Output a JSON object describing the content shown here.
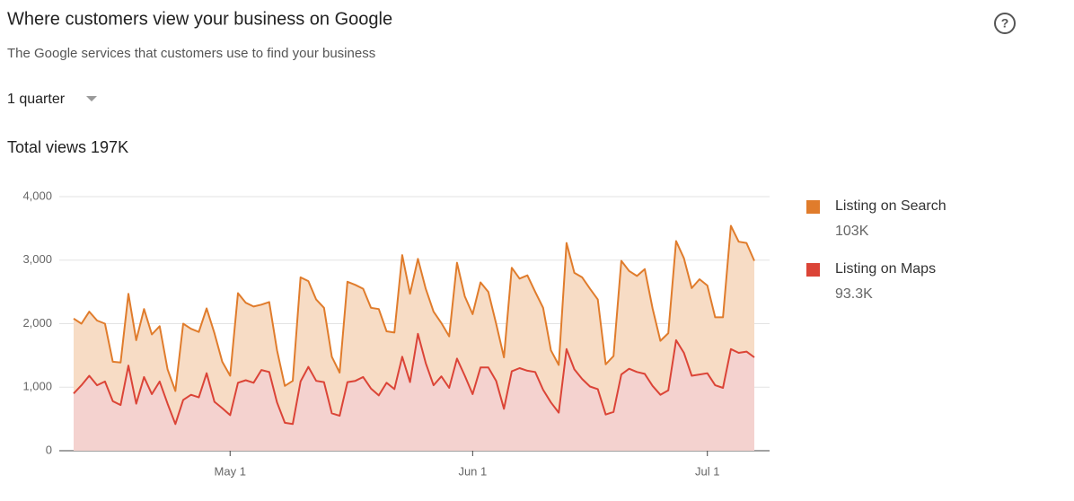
{
  "header": {
    "title": "Where customers view your business on Google",
    "subtitle": "The Google services that customers use to find your business"
  },
  "period_selector": "1 quarter",
  "total_views": "Total views 197K",
  "chart_data": {
    "type": "stacked-area",
    "categories": [
      null,
      null,
      null,
      null,
      null,
      null,
      null,
      null,
      null,
      null,
      null,
      null,
      null,
      null,
      null,
      null,
      null,
      null,
      null,
      null,
      "May 1",
      null,
      null,
      null,
      null,
      null,
      null,
      null,
      null,
      null,
      null,
      null,
      null,
      null,
      null,
      null,
      null,
      null,
      null,
      null,
      null,
      null,
      null,
      null,
      null,
      null,
      null,
      null,
      null,
      null,
      null,
      "Jun 1",
      null,
      null,
      null,
      null,
      null,
      null,
      null,
      null,
      null,
      null,
      null,
      null,
      null,
      null,
      null,
      null,
      null,
      null,
      null,
      null,
      null,
      null,
      null,
      null,
      null,
      null,
      null,
      null,
      null,
      "Jul 1",
      null,
      null,
      null,
      null,
      null,
      null
    ],
    "series": [
      {
        "name": "Listing on Search",
        "legend_value": "103K",
        "color": "#e07c2c",
        "fill": "#f7dcc5",
        "values": [
          1180,
          970,
          1010,
          1020,
          910,
          620,
          670,
          1130,
          1000,
          1070,
          940,
          870,
          540,
          520,
          1200,
          1040,
          1030,
          1020,
          1080,
          730,
          620,
          1410,
          1220,
          1200,
          1030,
          1100,
          820,
          580,
          680,
          1640,
          1350,
          1280,
          1170,
          890,
          680,
          1580,
          1510,
          1390,
          1270,
          1360,
          810,
          890,
          1600,
          1390,
          1180,
          1170,
          1160,
          840,
          810,
          1510,
          1250,
          1260,
          1340,
          1190,
          900,
          810,
          1630,
          1410,
          1500,
          1260,
          1290,
          820,
          750,
          1670,
          1520,
          1600,
          1540,
          1410,
          790,
          880,
          1790,
          1540,
          1510,
          1650,
          1220,
          850,
          900,
          1560,
          1490,
          1380,
          1500,
          1380,
          1070,
          1110,
          1940,
          1750,
          1710,
          1520
        ]
      },
      {
        "name": "Listing on Maps",
        "legend_value": "93.3K",
        "color": "#db4437",
        "fill": "#f4d2cf",
        "values": [
          900,
          1030,
          1180,
          1030,
          1090,
          780,
          720,
          1340,
          740,
          1160,
          890,
          1090,
          740,
          420,
          800,
          880,
          840,
          1220,
          770,
          670,
          560,
          1070,
          1110,
          1070,
          1270,
          1240,
          760,
          440,
          420,
          1090,
          1320,
          1100,
          1080,
          590,
          550,
          1080,
          1100,
          1160,
          980,
          870,
          1070,
          970,
          1480,
          1080,
          1840,
          1380,
          1030,
          1170,
          990,
          1450,
          1180,
          890,
          1310,
          1310,
          1100,
          660,
          1250,
          1300,
          1260,
          1240,
          960,
          760,
          600,
          1600,
          1280,
          1130,
          1010,
          970,
          570,
          610,
          1200,
          1290,
          1240,
          1210,
          1020,
          880,
          950,
          1740,
          1540,
          1180,
          1200,
          1220,
          1030,
          990,
          1600,
          1540,
          1560,
          1470
        ]
      }
    ],
    "ylim": [
      0,
      4000
    ],
    "yticks": [
      0,
      {
        "value": 1000,
        "label": "1,000"
      },
      {
        "value": 2000,
        "label": "2,000"
      },
      {
        "value": 3000,
        "label": "3,000"
      },
      {
        "value": 4000,
        "label": "4,000"
      }
    ],
    "grid": true,
    "legend_position": "right"
  }
}
